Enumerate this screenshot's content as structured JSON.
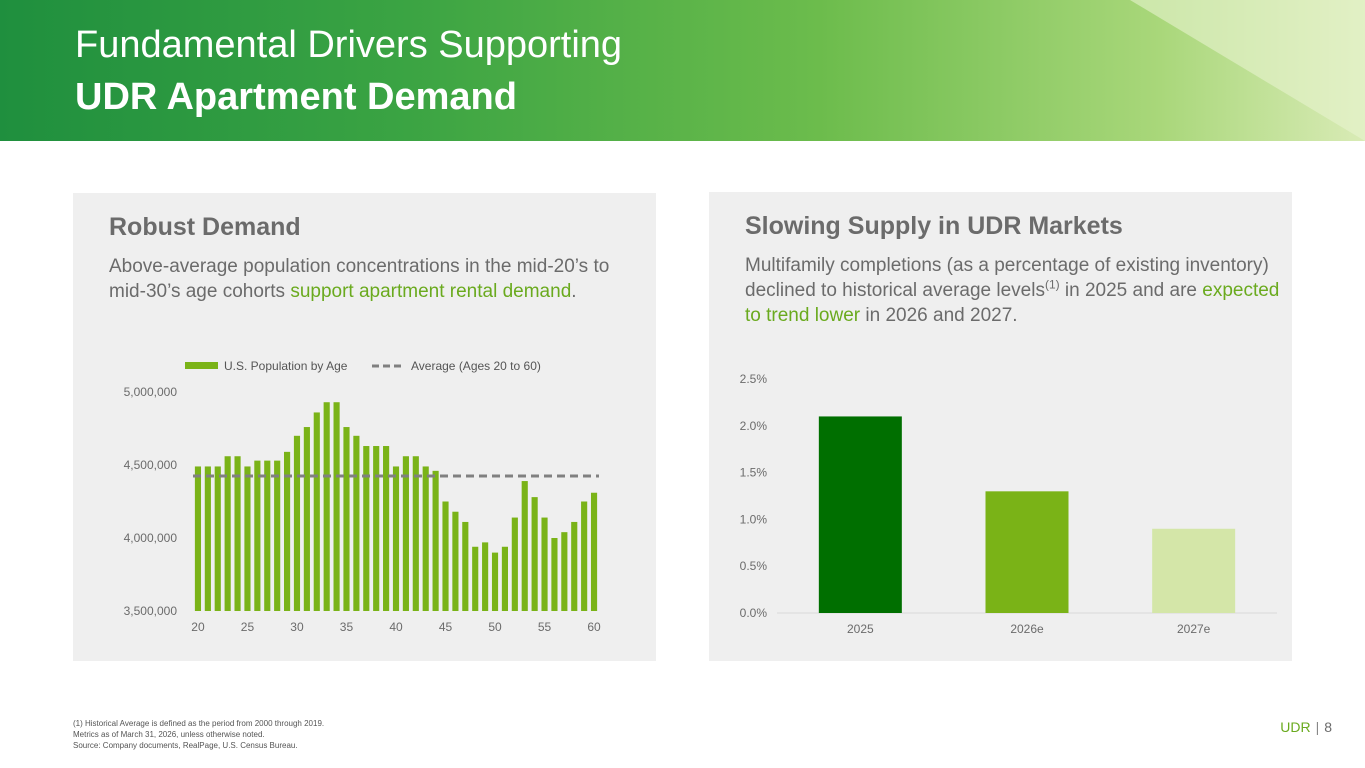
{
  "header": {
    "title_line1": "Fundamental Drivers Supporting",
    "title_line2": "UDR Apartment Demand"
  },
  "left_panel": {
    "title": "Robust Demand",
    "text_part1": "Above-average population concentrations in the mid-20’s to mid-30’s age cohorts ",
    "text_highlight": "support apartment rental demand",
    "text_part2": "."
  },
  "right_panel": {
    "title": "Slowing Supply in UDR Markets",
    "text_part1": "Multifamily completions (as a percentage of existing inventory) declined to historical average levels",
    "text_sup": "(1)",
    "text_part2": " in 2025 and are ",
    "text_highlight": "expected to trend lower",
    "text_part3": " in 2026 and 2027."
  },
  "footnotes": {
    "line1": "(1)   Historical Average is defined as the period from 2000 through 2019.",
    "line2": "Metrics as of March 31, 2026, unless otherwise noted.",
    "line3": "Source: Company documents, RealPage, U.S. Census Bureau."
  },
  "footer": {
    "brand": "UDR",
    "separator": "|",
    "page": "8"
  },
  "colors": {
    "accent_green": "#6aaa1e",
    "bar_green": "#7ab317",
    "dark_green": "#006f00",
    "light_green": "#d4e6a8",
    "avg_line": "#808080",
    "text_gray": "#6b6b6b"
  },
  "chart_data": [
    {
      "type": "bar",
      "x": [
        20,
        21,
        22,
        23,
        24,
        25,
        26,
        27,
        28,
        29,
        30,
        31,
        32,
        33,
        34,
        35,
        36,
        37,
        38,
        39,
        40,
        41,
        42,
        43,
        44,
        45,
        46,
        47,
        48,
        49,
        50,
        51,
        52,
        53,
        54,
        55,
        56,
        57,
        58,
        59,
        60
      ],
      "x_tick_labels": [
        "20",
        "25",
        "30",
        "35",
        "40",
        "45",
        "50",
        "55",
        "60"
      ],
      "series": [
        {
          "name": "U.S. Population by Age",
          "values": [
            4490000,
            4490000,
            4490000,
            4560000,
            4560000,
            4490000,
            4530000,
            4530000,
            4530000,
            4590000,
            4700000,
            4760000,
            4860000,
            4930000,
            4930000,
            4760000,
            4700000,
            4630000,
            4630000,
            4630000,
            4490000,
            4560000,
            4560000,
            4490000,
            4460000,
            4250000,
            4180000,
            4110000,
            3940000,
            3970000,
            3900000,
            3940000,
            4140000,
            4390000,
            4280000,
            4140000,
            4000000,
            4040000,
            4110000,
            4250000,
            4310000
          ]
        },
        {
          "name": "Average (Ages 20 to 60)",
          "value": 4425000,
          "style": "dashed"
        }
      ],
      "y_tick_labels": [
        "5,000,000",
        "4,500,000",
        "4,000,000",
        "3,500,000"
      ],
      "ylim": [
        3500000,
        5000000
      ],
      "legend_position": "top",
      "grid": false
    },
    {
      "type": "bar",
      "categories": [
        "2025",
        "2026e",
        "2027e"
      ],
      "values": [
        2.1,
        1.3,
        0.9
      ],
      "bar_colors": [
        "#006f00",
        "#7ab317",
        "#d4e6a8"
      ],
      "y_tick_labels": [
        "2.5%",
        "2.0%",
        "1.5%",
        "1.0%",
        "0.5%",
        "0.0%"
      ],
      "ylim": [
        0,
        2.5
      ],
      "grid": false
    }
  ]
}
